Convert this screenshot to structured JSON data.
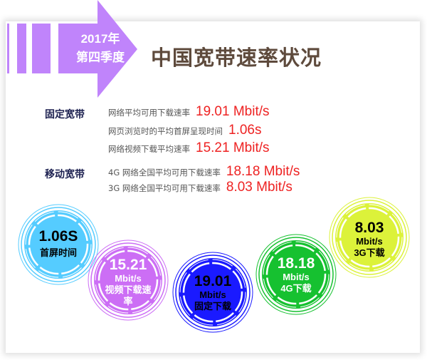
{
  "header": {
    "period_year": "2017年",
    "period_quarter": "第四季度",
    "title": "中国宽带速率状况"
  },
  "fixed": {
    "label": "固定宽带",
    "rows": [
      {
        "label": "网络平均可用下载速率",
        "value": "19.01 Mbit/s"
      },
      {
        "label": "网页浏览时的平均首屏呈现时间",
        "value": "1.06s"
      },
      {
        "label": "网络视频下载平均速率",
        "value": "15.21 Mbit/s"
      }
    ]
  },
  "mobile": {
    "label": "移动宽带",
    "rows": [
      {
        "label": "4G 网络全国平均可用下载速率",
        "value": "18.18 Mbit/s"
      },
      {
        "label": "3G 网络全国平均可用下载速率",
        "value": "8.03 Mbit/s"
      }
    ]
  },
  "circles": [
    {
      "value": "1.06S",
      "unit": "",
      "caption": "首屏时间",
      "color": "#55ccff",
      "text_color": "#000000"
    },
    {
      "value": "15.21",
      "unit": "Mbit/s",
      "caption": "视频下载速率",
      "color": "#cc6ef5",
      "text_color": "#ffffff"
    },
    {
      "value": "19.01",
      "unit": "Mbit/s",
      "caption": "固定下载",
      "color": "#1a1aff",
      "text_color": "#000000"
    },
    {
      "value": "18.18",
      "unit": "Mbit/s",
      "caption": "4G下载",
      "color": "#16c130",
      "text_color": "#ffffff"
    },
    {
      "value": "8.03",
      "unit": "Mbit/s",
      "caption": "3G下载",
      "color": "#dcf23a",
      "text_color": "#000000"
    }
  ],
  "colors": {
    "accent": "#c084fb",
    "title": "#5e4a3c",
    "value": "#ee2222"
  }
}
